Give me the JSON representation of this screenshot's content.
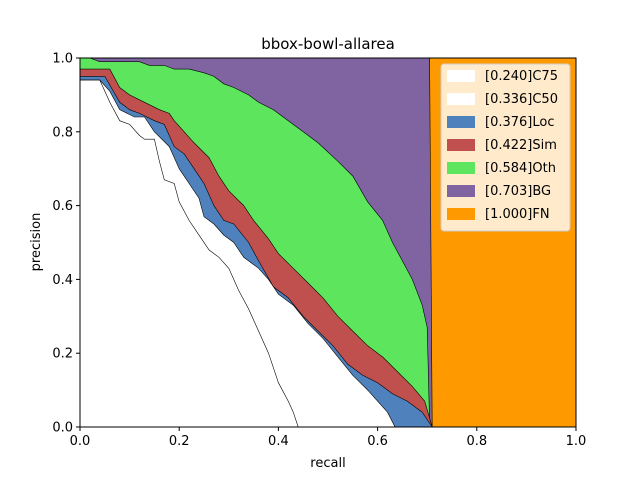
{
  "chart_data": {
    "type": "area",
    "title": "bbox-bowl-allarea",
    "xlabel": "recall",
    "ylabel": "precision",
    "xlim": [
      0,
      1
    ],
    "ylim": [
      0,
      1
    ],
    "xticks": [
      "0.0",
      "0.2",
      "0.4",
      "0.6",
      "0.8",
      "1.0"
    ],
    "yticks": [
      "0.0",
      "0.2",
      "0.4",
      "0.6",
      "0.8",
      "1.0"
    ],
    "legend_position": "top-right",
    "grid": false,
    "series": [
      {
        "name": "[0.240]C75",
        "color": "#ffffff",
        "points": [
          [
            0,
            1.0
          ],
          [
            0,
            0.94
          ],
          [
            0.04,
            0.94
          ],
          [
            0.06,
            0.88
          ],
          [
            0.08,
            0.83
          ],
          [
            0.1,
            0.82
          ],
          [
            0.12,
            0.79
          ],
          [
            0.13,
            0.78
          ],
          [
            0.15,
            0.78
          ],
          [
            0.16,
            0.72
          ],
          [
            0.17,
            0.67
          ],
          [
            0.19,
            0.66
          ],
          [
            0.2,
            0.61
          ],
          [
            0.22,
            0.56
          ],
          [
            0.24,
            0.52
          ],
          [
            0.26,
            0.48
          ],
          [
            0.28,
            0.46
          ],
          [
            0.3,
            0.43
          ],
          [
            0.32,
            0.37
          ],
          [
            0.34,
            0.32
          ],
          [
            0.36,
            0.26
          ],
          [
            0.38,
            0.2
          ],
          [
            0.4,
            0.12
          ],
          [
            0.42,
            0.07
          ],
          [
            0.43,
            0.04
          ],
          [
            0.44,
            0.0
          ]
        ]
      },
      {
        "name": "[0.336]C50",
        "color": "#ffffff",
        "points": [
          [
            0,
            1.0
          ],
          [
            0,
            0.94
          ],
          [
            0.04,
            0.94
          ],
          [
            0.06,
            0.91
          ],
          [
            0.08,
            0.86
          ],
          [
            0.11,
            0.84
          ],
          [
            0.13,
            0.84
          ],
          [
            0.15,
            0.8
          ],
          [
            0.18,
            0.76
          ],
          [
            0.2,
            0.7
          ],
          [
            0.22,
            0.66
          ],
          [
            0.24,
            0.62
          ],
          [
            0.25,
            0.57
          ],
          [
            0.27,
            0.55
          ],
          [
            0.29,
            0.52
          ],
          [
            0.31,
            0.5
          ],
          [
            0.33,
            0.46
          ],
          [
            0.36,
            0.43
          ],
          [
            0.38,
            0.4
          ],
          [
            0.4,
            0.36
          ],
          [
            0.43,
            0.33
          ],
          [
            0.46,
            0.28
          ],
          [
            0.49,
            0.24
          ],
          [
            0.52,
            0.19
          ],
          [
            0.55,
            0.14
          ],
          [
            0.58,
            0.1
          ],
          [
            0.6,
            0.07
          ],
          [
            0.62,
            0.04
          ],
          [
            0.635,
            0.0
          ]
        ]
      },
      {
        "name": "[0.376]Loc",
        "color": "#4f81bd",
        "points": [
          [
            0,
            1.0
          ],
          [
            0,
            0.95
          ],
          [
            0.05,
            0.95
          ],
          [
            0.08,
            0.88
          ],
          [
            0.1,
            0.86
          ],
          [
            0.12,
            0.85
          ],
          [
            0.15,
            0.83
          ],
          [
            0.17,
            0.82
          ],
          [
            0.19,
            0.76
          ],
          [
            0.21,
            0.74
          ],
          [
            0.23,
            0.7
          ],
          [
            0.25,
            0.66
          ],
          [
            0.27,
            0.6
          ],
          [
            0.29,
            0.56
          ],
          [
            0.31,
            0.55
          ],
          [
            0.34,
            0.5
          ],
          [
            0.36,
            0.45
          ],
          [
            0.39,
            0.38
          ],
          [
            0.42,
            0.35
          ],
          [
            0.45,
            0.3
          ],
          [
            0.48,
            0.26
          ],
          [
            0.51,
            0.22
          ],
          [
            0.54,
            0.17
          ],
          [
            0.57,
            0.14
          ],
          [
            0.6,
            0.12
          ],
          [
            0.63,
            0.09
          ],
          [
            0.66,
            0.07
          ],
          [
            0.69,
            0.04
          ],
          [
            0.71,
            0.0
          ]
        ]
      },
      {
        "name": "[0.422]Sim",
        "color": "#c0504d",
        "points": [
          [
            0,
            1.0
          ],
          [
            0,
            0.97
          ],
          [
            0.06,
            0.97
          ],
          [
            0.08,
            0.92
          ],
          [
            0.1,
            0.9
          ],
          [
            0.13,
            0.88
          ],
          [
            0.16,
            0.86
          ],
          [
            0.18,
            0.85
          ],
          [
            0.19,
            0.83
          ],
          [
            0.21,
            0.8
          ],
          [
            0.23,
            0.77
          ],
          [
            0.26,
            0.73
          ],
          [
            0.28,
            0.68
          ],
          [
            0.3,
            0.64
          ],
          [
            0.33,
            0.6
          ],
          [
            0.35,
            0.56
          ],
          [
            0.38,
            0.51
          ],
          [
            0.4,
            0.47
          ],
          [
            0.43,
            0.43
          ],
          [
            0.46,
            0.39
          ],
          [
            0.49,
            0.35
          ],
          [
            0.52,
            0.3
          ],
          [
            0.55,
            0.26
          ],
          [
            0.58,
            0.22
          ],
          [
            0.61,
            0.19
          ],
          [
            0.64,
            0.15
          ],
          [
            0.67,
            0.11
          ],
          [
            0.695,
            0.07
          ],
          [
            0.71,
            0.0
          ]
        ]
      },
      {
        "name": "[0.584]Oth",
        "color": "#5de65d",
        "points": [
          [
            0,
            1.0
          ],
          [
            0.02,
            1.0
          ],
          [
            0.04,
            0.99
          ],
          [
            0.06,
            0.99
          ],
          [
            0.12,
            0.99
          ],
          [
            0.14,
            0.98
          ],
          [
            0.17,
            0.98
          ],
          [
            0.19,
            0.97
          ],
          [
            0.22,
            0.97
          ],
          [
            0.25,
            0.96
          ],
          [
            0.27,
            0.95
          ],
          [
            0.29,
            0.93
          ],
          [
            0.31,
            0.92
          ],
          [
            0.34,
            0.9
          ],
          [
            0.36,
            0.88
          ],
          [
            0.39,
            0.86
          ],
          [
            0.42,
            0.83
          ],
          [
            0.45,
            0.8
          ],
          [
            0.48,
            0.77
          ],
          [
            0.52,
            0.72
          ],
          [
            0.55,
            0.68
          ],
          [
            0.58,
            0.61
          ],
          [
            0.61,
            0.56
          ],
          [
            0.63,
            0.5
          ],
          [
            0.65,
            0.45
          ],
          [
            0.67,
            0.4
          ],
          [
            0.69,
            0.33
          ],
          [
            0.7,
            0.27
          ],
          [
            0.705,
            0.0
          ]
        ]
      },
      {
        "name": "[0.703]BG",
        "color": "#8064a2",
        "points": [
          [
            0,
            1.0
          ],
          [
            0.705,
            1.0
          ],
          [
            0.705,
            0.95
          ],
          [
            0.71,
            0.0
          ]
        ]
      },
      {
        "name": "[1.000]FN",
        "color": "#ff9900",
        "points": [
          [
            0,
            1.0
          ],
          [
            1.0,
            1.0
          ],
          [
            1.0,
            0.0
          ]
        ]
      }
    ]
  }
}
